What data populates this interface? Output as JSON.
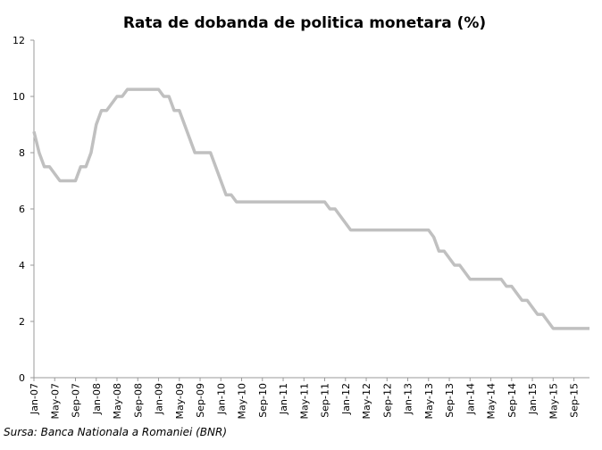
{
  "chart_data": {
    "type": "line",
    "title": "Rata de dobanda de politica monetara (%)",
    "source": "Sursa: Banca Nationala a Romaniei (BNR)",
    "categories": [
      "Jan-07",
      null,
      null,
      null,
      "May-07",
      null,
      null,
      null,
      "Sep-07",
      null,
      null,
      null,
      "Jan-08",
      null,
      null,
      null,
      "May-08",
      null,
      null,
      null,
      "Sep-08",
      null,
      null,
      null,
      "Jan-09",
      null,
      null,
      null,
      "May-09",
      null,
      null,
      null,
      "Sep-09",
      null,
      null,
      null,
      "Jan-10",
      null,
      null,
      null,
      "May-10",
      null,
      null,
      null,
      "Sep-10",
      null,
      null,
      null,
      "Jan-11",
      null,
      null,
      null,
      "May-11",
      null,
      null,
      null,
      "Sep-11",
      null,
      null,
      null,
      "Jan-12",
      null,
      null,
      null,
      "May-12",
      null,
      null,
      null,
      "Sep-12",
      null,
      null,
      null,
      "Jan-13",
      null,
      null,
      null,
      "May-13",
      null,
      null,
      null,
      "Sep-13",
      null,
      null,
      null,
      "Jan-14",
      null,
      null,
      null,
      "May-14",
      null,
      null,
      null,
      "Sep-14",
      null,
      null,
      null,
      "Jan-15",
      null,
      null,
      null,
      "May-15",
      null,
      null,
      null,
      "Sep-15",
      null,
      null,
      null
    ],
    "series": [
      {
        "name": "Rata de dobanda de politica monetara",
        "color": "#c0c0c0",
        "values": [
          8.75,
          8.0,
          7.5,
          7.5,
          7.25,
          7.0,
          7.0,
          7.0,
          7.0,
          7.5,
          7.5,
          8.0,
          9.0,
          9.5,
          9.5,
          9.75,
          10.0,
          10.0,
          10.25,
          10.25,
          10.25,
          10.25,
          10.25,
          10.25,
          10.25,
          10.0,
          10.0,
          9.5,
          9.5,
          9.0,
          8.5,
          8.0,
          8.0,
          8.0,
          8.0,
          7.5,
          7.0,
          6.5,
          6.5,
          6.25,
          6.25,
          6.25,
          6.25,
          6.25,
          6.25,
          6.25,
          6.25,
          6.25,
          6.25,
          6.25,
          6.25,
          6.25,
          6.25,
          6.25,
          6.25,
          6.25,
          6.25,
          6.0,
          6.0,
          5.75,
          5.5,
          5.25,
          5.25,
          5.25,
          5.25,
          5.25,
          5.25,
          5.25,
          5.25,
          5.25,
          5.25,
          5.25,
          5.25,
          5.25,
          5.25,
          5.25,
          5.25,
          5.0,
          4.5,
          4.5,
          4.25,
          4.0,
          4.0,
          3.75,
          3.5,
          3.5,
          3.5,
          3.5,
          3.5,
          3.5,
          3.5,
          3.25,
          3.25,
          3.0,
          2.75,
          2.75,
          2.5,
          2.25,
          2.25,
          2.0,
          1.75,
          1.75,
          1.75,
          1.75,
          1.75,
          1.75,
          1.75,
          1.75
        ]
      }
    ],
    "ylim": [
      0,
      12
    ],
    "yticks": [
      0,
      2,
      4,
      6,
      8,
      10,
      12
    ],
    "grid": false
  }
}
